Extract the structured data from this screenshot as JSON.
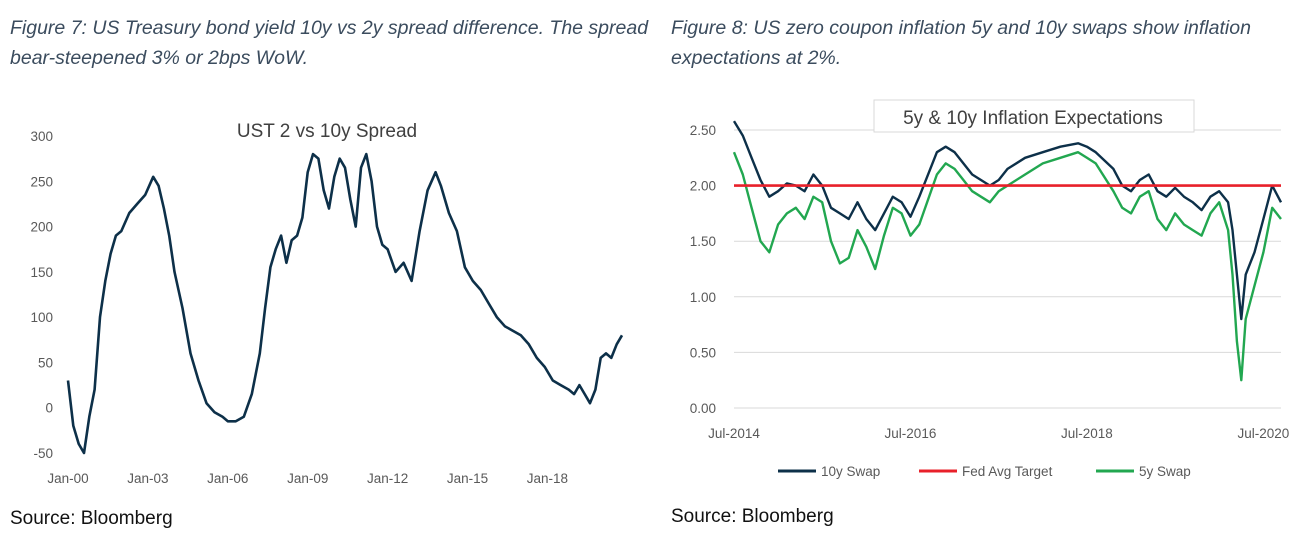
{
  "left_panel": {
    "caption": "Figure 7: US Treasury bond yield 10y vs 2y spread difference. The spread bear-steepened 3% or 2bps WoW.",
    "source": "Source: Bloomberg"
  },
  "right_panel": {
    "caption": "Figure 8: US zero coupon inflation 5y and 10y swaps show inflation expectations at 2%.",
    "source": "Source: Bloomberg"
  },
  "colors": {
    "spread": "#0d3049",
    "swap10y": "#0d3049",
    "fed": "#e8202a",
    "swap5y": "#22a750",
    "grid": "#d9d9d9"
  },
  "chart_data": [
    {
      "type": "line",
      "title": "UST 2 vs 10y Spread",
      "xlabel": "",
      "ylabel": "",
      "ylim": [
        -50,
        300
      ],
      "xlim": [
        2000.0,
        2020.8
      ],
      "grid": false,
      "legend": "none",
      "y_ticks": [
        "300",
        "250",
        "200",
        "150",
        "100",
        "50",
        "0",
        "-50"
      ],
      "y_tick_values": [
        300,
        250,
        200,
        150,
        100,
        50,
        0,
        -50
      ],
      "x_ticks": [
        "Jan-00",
        "Jan-03",
        "Jan-06",
        "Jan-09",
        "Jan-12",
        "Jan-15",
        "Jan-18"
      ],
      "x_tick_values": [
        2000,
        2003,
        2006,
        2009,
        2012,
        2015,
        2018
      ],
      "series": [
        {
          "x": [
            2000.0,
            2000.2,
            2000.4,
            2000.6,
            2000.8,
            2001.0,
            2001.2,
            2001.4,
            2001.6,
            2001.8,
            2002.0,
            2002.3,
            2002.6,
            2002.9,
            2003.2,
            2003.4,
            2003.6,
            2003.8,
            2004.0,
            2004.3,
            2004.6,
            2004.9,
            2005.2,
            2005.5,
            2005.8,
            2006.0,
            2006.3,
            2006.6,
            2006.9,
            2007.2,
            2007.4,
            2007.6,
            2007.8,
            2008.0,
            2008.2,
            2008.4,
            2008.6,
            2008.8,
            2009.0,
            2009.2,
            2009.4,
            2009.6,
            2009.8,
            2010.0,
            2010.2,
            2010.4,
            2010.6,
            2010.8,
            2011.0,
            2011.2,
            2011.4,
            2011.6,
            2011.8,
            2012.0,
            2012.3,
            2012.6,
            2012.9,
            2013.2,
            2013.5,
            2013.8,
            2014.0,
            2014.3,
            2014.6,
            2014.9,
            2015.2,
            2015.5,
            2015.8,
            2016.1,
            2016.4,
            2016.7,
            2017.0,
            2017.3,
            2017.6,
            2017.9,
            2018.2,
            2018.5,
            2018.8,
            2019.0,
            2019.2,
            2019.4,
            2019.6,
            2019.8,
            2020.0,
            2020.2,
            2020.4,
            2020.6,
            2020.8
          ],
          "values": [
            30,
            -20,
            -40,
            -50,
            -10,
            20,
            100,
            140,
            170,
            190,
            195,
            215,
            225,
            235,
            255,
            245,
            220,
            190,
            150,
            110,
            60,
            30,
            5,
            -5,
            -10,
            -15,
            -15,
            -10,
            15,
            60,
            110,
            155,
            175,
            190,
            160,
            185,
            190,
            210,
            260,
            280,
            275,
            240,
            220,
            255,
            275,
            265,
            230,
            200,
            265,
            280,
            250,
            200,
            180,
            175,
            150,
            160,
            140,
            195,
            240,
            260,
            245,
            215,
            195,
            155,
            140,
            130,
            115,
            100,
            90,
            85,
            80,
            70,
            55,
            45,
            30,
            25,
            20,
            15,
            25,
            15,
            5,
            20,
            55,
            60,
            55,
            70,
            80
          ]
        }
      ]
    },
    {
      "type": "line",
      "title": "5y & 10y Inflation Expectations",
      "xlabel": "",
      "ylabel": "",
      "ylim": [
        0,
        2.5
      ],
      "xlim": [
        2014.5,
        2020.7
      ],
      "grid": true,
      "legend": "bottom",
      "y_ticks": [
        "2.50",
        "2.00",
        "1.50",
        "1.00",
        "0.50",
        "0.00"
      ],
      "y_tick_values": [
        2.5,
        2.0,
        1.5,
        1.0,
        0.5,
        0.0
      ],
      "x_ticks": [
        "Jul-2014",
        "Jul-2016",
        "Jul-2018",
        "Jul-2020"
      ],
      "x_tick_values": [
        2014.5,
        2016.5,
        2018.5,
        2020.5
      ],
      "series": [
        {
          "name": "10y Swap",
          "x": [
            2014.5,
            2014.6,
            2014.7,
            2014.8,
            2014.9,
            2015.0,
            2015.1,
            2015.2,
            2015.3,
            2015.4,
            2015.5,
            2015.6,
            2015.7,
            2015.8,
            2015.9,
            2016.0,
            2016.1,
            2016.2,
            2016.3,
            2016.4,
            2016.5,
            2016.6,
            2016.8,
            2016.9,
            2017.0,
            2017.1,
            2017.2,
            2017.4,
            2017.5,
            2017.6,
            2017.8,
            2018.0,
            2018.2,
            2018.4,
            2018.5,
            2018.6,
            2018.8,
            2018.9,
            2019.0,
            2019.1,
            2019.2,
            2019.3,
            2019.4,
            2019.5,
            2019.6,
            2019.7,
            2019.8,
            2019.9,
            2020.0,
            2020.1,
            2020.15,
            2020.2,
            2020.25,
            2020.3,
            2020.4,
            2020.5,
            2020.55,
            2020.6,
            2020.7
          ],
          "values": [
            2.58,
            2.45,
            2.25,
            2.05,
            1.9,
            1.95,
            2.02,
            2.0,
            1.95,
            2.1,
            2.0,
            1.8,
            1.75,
            1.7,
            1.85,
            1.7,
            1.6,
            1.75,
            1.9,
            1.85,
            1.72,
            1.9,
            2.3,
            2.35,
            2.3,
            2.2,
            2.1,
            2.0,
            2.05,
            2.15,
            2.25,
            2.3,
            2.35,
            2.38,
            2.35,
            2.3,
            2.15,
            2.0,
            1.95,
            2.05,
            2.1,
            1.95,
            1.9,
            1.98,
            1.9,
            1.85,
            1.78,
            1.9,
            1.95,
            1.85,
            1.6,
            1.2,
            0.8,
            1.2,
            1.4,
            1.7,
            1.85,
            2.0,
            1.85
          ]
        },
        {
          "name": "Fed Avg Target",
          "x": [
            2014.5,
            2020.7
          ],
          "values": [
            2.0,
            2.0
          ]
        },
        {
          "name": "5y Swap",
          "x": [
            2014.5,
            2014.6,
            2014.7,
            2014.8,
            2014.9,
            2015.0,
            2015.1,
            2015.2,
            2015.3,
            2015.4,
            2015.5,
            2015.6,
            2015.7,
            2015.8,
            2015.9,
            2016.0,
            2016.1,
            2016.2,
            2016.3,
            2016.4,
            2016.5,
            2016.6,
            2016.8,
            2016.9,
            2017.0,
            2017.1,
            2017.2,
            2017.4,
            2017.5,
            2017.6,
            2017.8,
            2018.0,
            2018.2,
            2018.4,
            2018.5,
            2018.6,
            2018.8,
            2018.9,
            2019.0,
            2019.1,
            2019.2,
            2019.3,
            2019.4,
            2019.5,
            2019.6,
            2019.7,
            2019.8,
            2019.9,
            2020.0,
            2020.1,
            2020.15,
            2020.2,
            2020.25,
            2020.3,
            2020.4,
            2020.5,
            2020.55,
            2020.6,
            2020.7
          ],
          "values": [
            2.3,
            2.1,
            1.8,
            1.5,
            1.4,
            1.65,
            1.75,
            1.8,
            1.7,
            1.9,
            1.85,
            1.5,
            1.3,
            1.35,
            1.6,
            1.45,
            1.25,
            1.55,
            1.8,
            1.75,
            1.55,
            1.65,
            2.1,
            2.2,
            2.15,
            2.05,
            1.95,
            1.85,
            1.95,
            2.0,
            2.1,
            2.2,
            2.25,
            2.3,
            2.25,
            2.2,
            1.95,
            1.8,
            1.75,
            1.9,
            1.95,
            1.7,
            1.6,
            1.75,
            1.65,
            1.6,
            1.55,
            1.75,
            1.85,
            1.6,
            1.2,
            0.6,
            0.25,
            0.8,
            1.1,
            1.4,
            1.6,
            1.8,
            1.7
          ]
        }
      ]
    }
  ]
}
